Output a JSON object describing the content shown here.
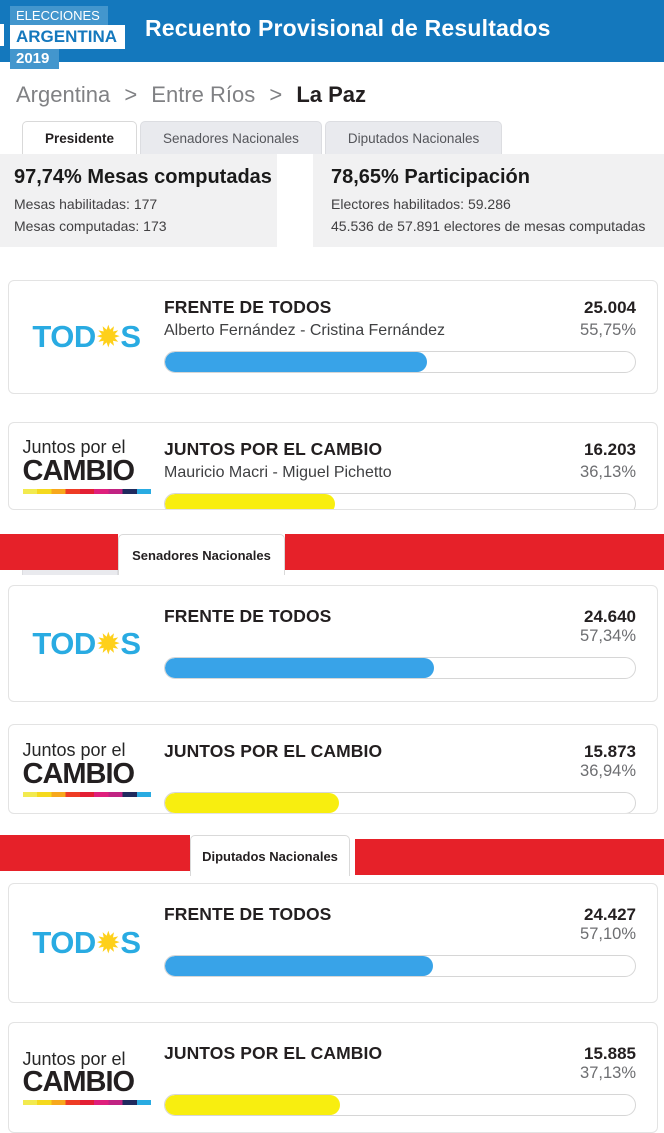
{
  "header": {
    "logo": {
      "line1": "ELECCIONES",
      "line2": "ARGENTINA",
      "line3": "2019"
    },
    "title": "Recuento Provisional de Resultados"
  },
  "breadcrumb": {
    "items": [
      "Argentina",
      "Entre Ríos"
    ],
    "separator": ">",
    "current": "La Paz"
  },
  "tabs": [
    {
      "label": "Presidente",
      "active": true
    },
    {
      "label": "Senadores Nacionales",
      "active": false
    },
    {
      "label": "Diputados Nacionales",
      "active": false
    }
  ],
  "stats": {
    "left": {
      "title": "97,74% Mesas computadas",
      "lines": [
        "Mesas habilitadas: 177",
        "Mesas computadas: 173"
      ]
    },
    "right": {
      "title": "78,65% Participación",
      "lines": [
        "Electores habilitados: 59.286",
        "45.536 de 57.891 electores de mesas computadas"
      ]
    }
  },
  "logos": {
    "todos": {
      "pre": "TOD",
      "sun": "✹",
      "post": "S",
      "text_color": "#29abe2",
      "sun_color": "#fed01b"
    },
    "jxc": {
      "line1": "Juntos por el",
      "line2": "CAMBIO",
      "stripe": [
        "#f2ea4f",
        "#f5d91d",
        "#f7a81c",
        "#ee3c24",
        "#e31f34",
        "#df1f7c",
        "#c02382",
        "#1f2a5e",
        "#29abe2"
      ]
    }
  },
  "colors": {
    "header_blue": "#1478bd",
    "band_red": "#e62129",
    "bar_blue": "#38a3e8",
    "bar_yellow": "#f8ee0f"
  },
  "sections": [
    {
      "id": "presidente",
      "results": [
        {
          "party": "FRENTE DE TODOS",
          "candidates": "Alberto Fernández - Cristina Fernández",
          "votes": "25.004",
          "percent": "55,75%",
          "percent_value": 55.75,
          "bar_color": "#38a3e8"
        },
        {
          "party": "JUNTOS POR EL CAMBIO",
          "candidates": "Mauricio Macri - Miguel Pichetto",
          "votes": "16.203",
          "percent": "36,13%",
          "percent_value": 36.13,
          "bar_color": "#f8ee0f"
        }
      ]
    },
    {
      "id": "senadores",
      "tab_label": "Senadores Nacionales",
      "results": [
        {
          "party": "FRENTE DE TODOS",
          "candidates": "",
          "votes": "24.640",
          "percent": "57,34%",
          "percent_value": 57.34,
          "bar_color": "#38a3e8"
        },
        {
          "party": "JUNTOS POR EL CAMBIO",
          "candidates": "",
          "votes": "15.873",
          "percent": "36,94%",
          "percent_value": 36.94,
          "bar_color": "#f8ee0f"
        }
      ]
    },
    {
      "id": "diputados",
      "tab_label": "Diputados Nacionales",
      "results": [
        {
          "party": "FRENTE DE TODOS",
          "candidates": "",
          "votes": "24.427",
          "percent": "57,10%",
          "percent_value": 57.1,
          "bar_color": "#38a3e8"
        },
        {
          "party": "JUNTOS POR EL CAMBIO",
          "candidates": "",
          "votes": "15.885",
          "percent": "37,13%",
          "percent_value": 37.13,
          "bar_color": "#f8ee0f"
        }
      ]
    }
  ]
}
